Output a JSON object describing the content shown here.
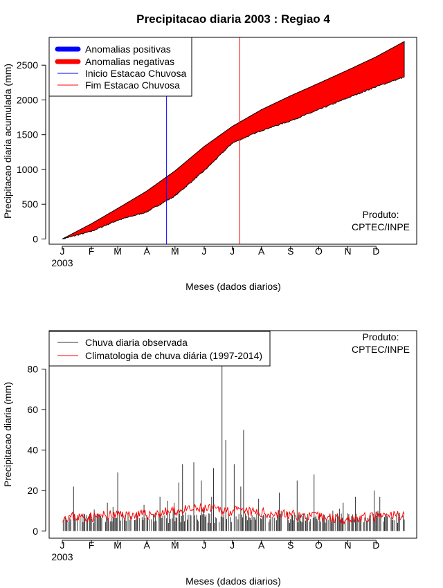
{
  "chart_data": [
    {
      "id": "top",
      "type": "area",
      "title": "Precipitacao diaria 2003 : Regiao 4",
      "ylabel": "Precipitacao diaria acumulada (mm)",
      "xlabel": "Meses (dados diarios)",
      "year_label": "2003",
      "month_ticks": [
        "J",
        "F",
        "M",
        "A",
        "M",
        "J",
        "J",
        "A",
        "S",
        "O",
        "N",
        "D"
      ],
      "month_tick_days": [
        1,
        32,
        60,
        91,
        121,
        152,
        182,
        213,
        244,
        274,
        305,
        335
      ],
      "x_range": [
        1,
        365
      ],
      "ylim": [
        -75,
        2900
      ],
      "y_ticks": [
        0,
        500,
        1000,
        1500,
        2000,
        2500
      ],
      "credit_lines": [
        "Produto:",
        "CPTEC/INPE"
      ],
      "legend": {
        "position": "top-left",
        "entries": [
          {
            "label": "Anomalias positivas",
            "color": "#0000ff",
            "style": "thick"
          },
          {
            "label": "Anomalias negativas",
            "color": "#ff0000",
            "style": "thick"
          },
          {
            "label": "Inicio Estacao Chuvosa",
            "color": "#0000ff",
            "style": "thin"
          },
          {
            "label": "Fim Estacao Chuvosa",
            "color": "#ff0000",
            "style": "thin"
          }
        ]
      },
      "vlines": [
        {
          "name": "inicio-estacao-chuvosa",
          "day": 112,
          "color": "#0000ff"
        },
        {
          "name": "fim-estacao-chuvosa",
          "day": 190,
          "color": "#ff0000"
        }
      ],
      "series": [
        {
          "name": "Climatologia acumulada",
          "x": [
            1,
            32,
            60,
            91,
            121,
            152,
            182,
            213,
            244,
            274,
            305,
            335,
            365
          ],
          "values": [
            0,
            220,
            440,
            690,
            980,
            1330,
            1620,
            1860,
            2060,
            2240,
            2430,
            2620,
            2840
          ]
        },
        {
          "name": "Observado acumulado",
          "x": [
            1,
            32,
            60,
            91,
            121,
            152,
            182,
            213,
            244,
            274,
            305,
            335,
            365
          ],
          "values": [
            0,
            110,
            270,
            390,
            620,
            980,
            1380,
            1560,
            1700,
            1860,
            2030,
            2190,
            2330
          ]
        }
      ],
      "fill": {
        "color": "#ff0000",
        "label": "Anomalias negativas"
      }
    },
    {
      "id": "bottom",
      "type": "bar",
      "ylabel": "Precipitacao diaria (mm)",
      "xlabel": "Meses (dados diarios)",
      "year_label": "2003",
      "month_ticks": [
        "J",
        "F",
        "M",
        "A",
        "M",
        "J",
        "J",
        "A",
        "S",
        "O",
        "N",
        "D"
      ],
      "month_tick_days": [
        1,
        32,
        60,
        91,
        121,
        152,
        182,
        213,
        244,
        274,
        305,
        335
      ],
      "x_range": [
        1,
        365
      ],
      "ylim": [
        -3.5,
        99
      ],
      "y_ticks": [
        0,
        20,
        40,
        60,
        80
      ],
      "credit_lines": [
        "Produto:",
        "CPTEC/INPE"
      ],
      "legend": {
        "position": "top-left",
        "entries": [
          {
            "label": "Chuva diaria observada",
            "color": "#333333",
            "style": "thin"
          },
          {
            "label": "Climatologia de chuva diária (1997-2014)",
            "color": "#ff0000",
            "style": "thin"
          }
        ]
      },
      "series": [
        {
          "name": "Chuva diaria observada",
          "color": "#333333",
          "peaks": [
            {
              "day": 13,
              "value": 22
            },
            {
              "day": 49,
              "value": 14
            },
            {
              "day": 60,
              "value": 29
            },
            {
              "day": 88,
              "value": 13
            },
            {
              "day": 105,
              "value": 17
            },
            {
              "day": 113,
              "value": 15
            },
            {
              "day": 120,
              "value": 14
            },
            {
              "day": 125,
              "value": 24
            },
            {
              "day": 129,
              "value": 33
            },
            {
              "day": 141,
              "value": 34
            },
            {
              "day": 149,
              "value": 25
            },
            {
              "day": 160,
              "value": 17
            },
            {
              "day": 162,
              "value": 31
            },
            {
              "day": 171,
              "value": 82
            },
            {
              "day": 175,
              "value": 45
            },
            {
              "day": 184,
              "value": 33
            },
            {
              "day": 191,
              "value": 22
            },
            {
              "day": 194,
              "value": 50
            },
            {
              "day": 210,
              "value": 16
            },
            {
              "day": 232,
              "value": 19
            },
            {
              "day": 251,
              "value": 25
            },
            {
              "day": 269,
              "value": 28
            },
            {
              "day": 300,
              "value": 14
            },
            {
              "day": 313,
              "value": 17
            },
            {
              "day": 333,
              "value": 20
            },
            {
              "day": 339,
              "value": 17
            }
          ],
          "base_level": [
            4,
            12
          ]
        },
        {
          "name": "Climatologia de chuva diária (1997-2014)",
          "color": "#ff0000",
          "x": [
            1,
            32,
            60,
            91,
            121,
            152,
            182,
            213,
            244,
            274,
            305,
            335,
            365
          ],
          "values": [
            7,
            7,
            8,
            8,
            10,
            11,
            10,
            9,
            8,
            7,
            6,
            7,
            8
          ]
        }
      ]
    }
  ]
}
